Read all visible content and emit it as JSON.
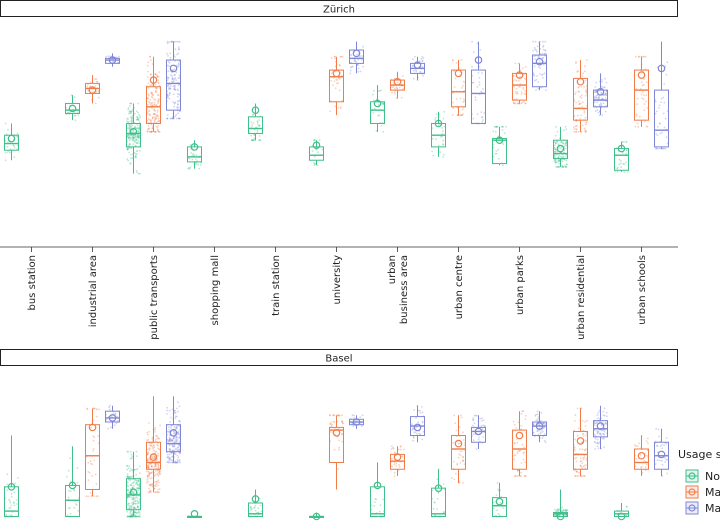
{
  "chart_data": {
    "type": "boxplot",
    "categories": [
      "bus station",
      "industrial area",
      "public transports",
      "shopping mall",
      "train station",
      "university",
      "urban business area",
      "urban centre",
      "urban parks",
      "urban residential",
      "urban schools"
    ],
    "category_display": [
      [
        "bus station"
      ],
      [
        "industrial area"
      ],
      [
        "public transports"
      ],
      [
        "shopping mall"
      ],
      [
        "train station"
      ],
      [
        "university"
      ],
      [
        "urban",
        "business area"
      ],
      [
        "urban centre"
      ],
      [
        "urban parks"
      ],
      [
        "urban residential"
      ],
      [
        "urban schools"
      ]
    ],
    "legend": {
      "title": "Usage s",
      "entries": [
        {
          "label": "No",
          "color": "#3fbf8a"
        },
        {
          "label": "Ma",
          "color": "#f07c4a"
        },
        {
          "label": "Ma",
          "color": "#7f86d6"
        }
      ]
    },
    "panels": [
      {
        "title": "Zürich",
        "ylim": [
          0,
          1
        ],
        "series": [
          {
            "name": "No",
            "color": "#3fbf8a",
            "boxes": [
              {
                "cat": 0,
                "whislo": 0.28,
                "q1": 0.34,
                "med": 0.38,
                "q3": 0.43,
                "whishi": 0.5,
                "mean": 0.41,
                "n": 30
              },
              {
                "cat": 1,
                "whislo": 0.52,
                "q1": 0.56,
                "med": 0.58,
                "q3": 0.62,
                "whishi": 0.67,
                "mean": 0.59,
                "n": 20
              },
              {
                "cat": 2,
                "whislo": 0.2,
                "q1": 0.36,
                "med": 0.44,
                "q3": 0.5,
                "whishi": 0.62,
                "mean": 0.45,
                "n": 200
              },
              {
                "cat": 3,
                "whislo": 0.23,
                "q1": 0.27,
                "med": 0.3,
                "q3": 0.36,
                "whishi": 0.4,
                "mean": 0.36,
                "n": 30
              },
              {
                "cat": 4,
                "whislo": 0.4,
                "q1": 0.44,
                "med": 0.47,
                "q3": 0.54,
                "whishi": 0.62,
                "mean": 0.58,
                "n": 40
              },
              {
                "cat": 5,
                "whislo": 0.25,
                "q1": 0.28,
                "med": 0.31,
                "q3": 0.36,
                "whishi": 0.4,
                "mean": 0.37,
                "n": 20
              },
              {
                "cat": 6,
                "whislo": 0.45,
                "q1": 0.5,
                "med": 0.58,
                "q3": 0.63,
                "whishi": 0.73,
                "mean": 0.62,
                "n": 30
              },
              {
                "cat": 7,
                "whislo": 0.3,
                "q1": 0.36,
                "med": 0.43,
                "q3": 0.5,
                "whishi": 0.57,
                "mean": 0.5,
                "n": 30
              },
              {
                "cat": 8,
                "whislo": 0.25,
                "q1": 0.26,
                "med": 0.4,
                "q3": 0.41,
                "whishi": 0.48,
                "mean": 0.4,
                "n": 30
              },
              {
                "cat": 9,
                "whislo": 0.24,
                "q1": 0.29,
                "med": 0.32,
                "q3": 0.4,
                "whishi": 0.48,
                "mean": 0.35,
                "n": 120
              },
              {
                "cat": 10,
                "whislo": 0.21,
                "q1": 0.22,
                "med": 0.31,
                "q3": 0.35,
                "whishi": 0.39,
                "mean": 0.35,
                "n": 30
              }
            ]
          },
          {
            "name": "Ma",
            "color": "#f07c4a",
            "boxes": [
              {
                "cat": 1,
                "whislo": 0.62,
                "q1": 0.68,
                "med": 0.71,
                "q3": 0.74,
                "whishi": 0.79,
                "mean": 0.7,
                "n": 25
              },
              {
                "cat": 2,
                "whislo": 0.45,
                "q1": 0.5,
                "med": 0.6,
                "q3": 0.72,
                "whishi": 0.9,
                "mean": 0.76,
                "n": 150
              },
              {
                "cat": 5,
                "whislo": 0.55,
                "q1": 0.63,
                "med": 0.78,
                "q3": 0.82,
                "whishi": 0.9,
                "mean": 0.8,
                "n": 40
              },
              {
                "cat": 6,
                "whislo": 0.65,
                "q1": 0.7,
                "med": 0.73,
                "q3": 0.76,
                "whishi": 0.81,
                "mean": 0.75,
                "n": 30
              },
              {
                "cat": 7,
                "whislo": 0.55,
                "q1": 0.6,
                "med": 0.69,
                "q3": 0.82,
                "whishi": 0.88,
                "mean": 0.8,
                "n": 40
              },
              {
                "cat": 8,
                "whislo": 0.62,
                "q1": 0.64,
                "med": 0.73,
                "q3": 0.8,
                "whishi": 0.86,
                "mean": 0.79,
                "n": 50
              },
              {
                "cat": 9,
                "whislo": 0.45,
                "q1": 0.52,
                "med": 0.59,
                "q3": 0.77,
                "whishi": 0.88,
                "mean": 0.75,
                "n": 80
              },
              {
                "cat": 10,
                "whislo": 0.48,
                "q1": 0.52,
                "med": 0.7,
                "q3": 0.82,
                "whishi": 0.9,
                "mean": 0.79,
                "n": 40
              }
            ]
          },
          {
            "name": "Ma",
            "color": "#7f86d6",
            "boxes": [
              {
                "cat": 1,
                "whislo": 0.84,
                "q1": 0.86,
                "med": 0.88,
                "q3": 0.89,
                "whishi": 0.92,
                "mean": 0.88,
                "n": 20
              },
              {
                "cat": 2,
                "whislo": 0.53,
                "q1": 0.58,
                "med": 0.74,
                "q3": 0.88,
                "whishi": 0.99,
                "mean": 0.83,
                "n": 150
              },
              {
                "cat": 5,
                "whislo": 0.8,
                "q1": 0.86,
                "med": 0.89,
                "q3": 0.94,
                "whishi": 0.99,
                "mean": 0.92,
                "n": 30
              },
              {
                "cat": 6,
                "whislo": 0.76,
                "q1": 0.8,
                "med": 0.83,
                "q3": 0.86,
                "whishi": 0.9,
                "mean": 0.85,
                "n": 30
              },
              {
                "cat": 7,
                "whislo": 0.5,
                "q1": 0.5,
                "med": 0.68,
                "q3": 0.82,
                "whishi": 0.99,
                "mean": 0.88,
                "n": 40
              },
              {
                "cat": 8,
                "whislo": 0.7,
                "q1": 0.72,
                "med": 0.86,
                "q3": 0.91,
                "whishi": 0.99,
                "mean": 0.87,
                "n": 60
              },
              {
                "cat": 9,
                "whislo": 0.55,
                "q1": 0.6,
                "med": 0.64,
                "q3": 0.7,
                "whishi": 0.8,
                "mean": 0.69,
                "n": 80
              },
              {
                "cat": 10,
                "whislo": 0.35,
                "q1": 0.36,
                "med": 0.46,
                "q3": 0.7,
                "whishi": 0.99,
                "mean": 0.83,
                "n": 40
              }
            ]
          }
        ]
      },
      {
        "title": "Basel",
        "ylim": [
          0,
          1
        ],
        "series": [
          {
            "name": "No",
            "color": "#3fbf8a",
            "boxes": [
              {
                "cat": 0,
                "whislo": 0.1,
                "q1": 0.1,
                "med": 0.14,
                "q3": 0.32,
                "whishi": 0.7,
                "mean": 0.32,
                "n": 40
              },
              {
                "cat": 1,
                "whislo": 0.1,
                "q1": 0.1,
                "med": 0.22,
                "q3": 0.33,
                "whishi": 0.62,
                "mean": 0.33,
                "n": 30
              },
              {
                "cat": 2,
                "whislo": 0.1,
                "q1": 0.15,
                "med": 0.26,
                "q3": 0.38,
                "whishi": 0.58,
                "mean": 0.28,
                "n": 250
              },
              {
                "cat": 3,
                "whislo": 0.1,
                "q1": 0.1,
                "med": 0.1,
                "q3": 0.1,
                "whishi": 0.1,
                "mean": 0.12,
                "n": 15
              },
              {
                "cat": 4,
                "whislo": 0.1,
                "q1": 0.1,
                "med": 0.12,
                "q3": 0.2,
                "whishi": 0.3,
                "mean": 0.23,
                "n": 30
              },
              {
                "cat": 5,
                "whislo": 0.1,
                "q1": 0.1,
                "med": 0.1,
                "q3": 0.1,
                "whishi": 0.13,
                "mean": 0.1,
                "n": 10
              },
              {
                "cat": 6,
                "whislo": 0.1,
                "q1": 0.1,
                "med": 0.12,
                "q3": 0.32,
                "whishi": 0.5,
                "mean": 0.33,
                "n": 30
              },
              {
                "cat": 7,
                "whislo": 0.1,
                "q1": 0.1,
                "med": 0.12,
                "q3": 0.31,
                "whishi": 0.45,
                "mean": 0.31,
                "n": 30
              },
              {
                "cat": 8,
                "whislo": 0.1,
                "q1": 0.1,
                "med": 0.18,
                "q3": 0.24,
                "whishi": 0.35,
                "mean": 0.21,
                "n": 30
              },
              {
                "cat": 9,
                "whislo": 0.1,
                "q1": 0.1,
                "med": 0.12,
                "q3": 0.13,
                "whishi": 0.3,
                "mean": 0.1,
                "n": 80
              },
              {
                "cat": 10,
                "whislo": 0.1,
                "q1": 0.1,
                "med": 0.12,
                "q3": 0.14,
                "whishi": 0.2,
                "mean": 0.1,
                "n": 15
              }
            ]
          },
          {
            "name": "Ma",
            "color": "#f07c4a",
            "boxes": [
              {
                "cat": 1,
                "whislo": 0.25,
                "q1": 0.3,
                "med": 0.55,
                "q3": 0.78,
                "whishi": 0.9,
                "mean": 0.76,
                "n": 40
              },
              {
                "cat": 2,
                "whislo": 0.28,
                "q1": 0.45,
                "med": 0.5,
                "q3": 0.65,
                "whishi": 0.99,
                "mean": 0.54,
                "n": 200
              },
              {
                "cat": 5,
                "whislo": 0.3,
                "q1": 0.5,
                "med": 0.74,
                "q3": 0.76,
                "whishi": 0.85,
                "mean": 0.72,
                "n": 40
              },
              {
                "cat": 6,
                "whislo": 0.4,
                "q1": 0.45,
                "med": 0.51,
                "q3": 0.56,
                "whishi": 0.62,
                "mean": 0.54,
                "n": 30
              },
              {
                "cat": 7,
                "whislo": 0.35,
                "q1": 0.45,
                "med": 0.6,
                "q3": 0.7,
                "whishi": 0.85,
                "mean": 0.64,
                "n": 40
              },
              {
                "cat": 8,
                "whislo": 0.4,
                "q1": 0.45,
                "med": 0.6,
                "q3": 0.74,
                "whishi": 0.88,
                "mean": 0.7,
                "n": 50
              },
              {
                "cat": 9,
                "whislo": 0.4,
                "q1": 0.45,
                "med": 0.56,
                "q3": 0.73,
                "whishi": 0.9,
                "mean": 0.66,
                "n": 80
              },
              {
                "cat": 10,
                "whislo": 0.4,
                "q1": 0.45,
                "med": 0.5,
                "q3": 0.6,
                "whishi": 0.7,
                "mean": 0.55,
                "n": 30
              }
            ]
          },
          {
            "name": "Ma",
            "color": "#7f86d6",
            "boxes": [
              {
                "cat": 1,
                "whislo": 0.75,
                "q1": 0.8,
                "med": 0.83,
                "q3": 0.88,
                "whishi": 0.92,
                "mean": 0.83,
                "n": 20
              },
              {
                "cat": 2,
                "whislo": 0.5,
                "q1": 0.58,
                "med": 0.64,
                "q3": 0.78,
                "whishi": 0.99,
                "mean": 0.72,
                "n": 200
              },
              {
                "cat": 5,
                "whislo": 0.75,
                "q1": 0.78,
                "med": 0.8,
                "q3": 0.82,
                "whishi": 0.85,
                "mean": 0.8,
                "n": 20
              },
              {
                "cat": 6,
                "whislo": 0.65,
                "q1": 0.7,
                "med": 0.77,
                "q3": 0.84,
                "whishi": 0.92,
                "mean": 0.76,
                "n": 30
              },
              {
                "cat": 7,
                "whislo": 0.6,
                "q1": 0.65,
                "med": 0.73,
                "q3": 0.76,
                "whishi": 0.85,
                "mean": 0.73,
                "n": 40
              },
              {
                "cat": 8,
                "whislo": 0.65,
                "q1": 0.7,
                "med": 0.77,
                "q3": 0.8,
                "whishi": 0.88,
                "mean": 0.77,
                "n": 50
              },
              {
                "cat": 9,
                "whislo": 0.6,
                "q1": 0.69,
                "med": 0.75,
                "q3": 0.81,
                "whishi": 0.92,
                "mean": 0.77,
                "n": 80
              },
              {
                "cat": 10,
                "whislo": 0.4,
                "q1": 0.45,
                "med": 0.55,
                "q3": 0.65,
                "whishi": 0.75,
                "mean": 0.56,
                "n": 30
              }
            ]
          }
        ]
      }
    ]
  }
}
